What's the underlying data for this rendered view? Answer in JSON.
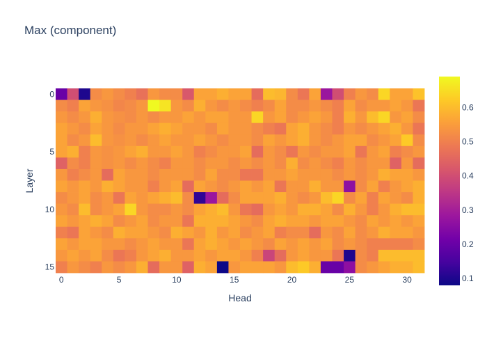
{
  "chart_data": {
    "type": "heatmap",
    "title": "Max (component)",
    "xlabel": "Head",
    "ylabel": "Layer",
    "x_ticks": [
      "0",
      "5",
      "10",
      "15",
      "20",
      "25",
      "30"
    ],
    "y_ticks": [
      "0",
      "5",
      "10",
      "15"
    ],
    "colorbar_ticks": [
      "0.1",
      "0.2",
      "0.3",
      "0.4",
      "0.5",
      "0.6"
    ],
    "zmin": 0.08,
    "zmax": 0.69,
    "colorscale": "plasma",
    "n_cols": 32,
    "n_rows": 16,
    "z": [
      [
        0.2,
        0.4,
        0.1,
        0.52,
        0.54,
        0.52,
        0.5,
        0.47,
        0.54,
        0.52,
        0.52,
        0.42,
        0.56,
        0.56,
        0.58,
        0.56,
        0.56,
        0.46,
        0.6,
        0.59,
        0.52,
        0.48,
        0.56,
        0.28,
        0.4,
        0.5,
        0.54,
        0.52,
        0.64,
        0.56,
        0.56,
        0.61
      ],
      [
        0.52,
        0.5,
        0.56,
        0.54,
        0.53,
        0.51,
        0.52,
        0.54,
        0.69,
        0.66,
        0.54,
        0.52,
        0.58,
        0.54,
        0.52,
        0.54,
        0.52,
        0.5,
        0.52,
        0.56,
        0.52,
        0.52,
        0.54,
        0.52,
        0.5,
        0.56,
        0.52,
        0.54,
        0.54,
        0.56,
        0.54,
        0.48
      ],
      [
        0.54,
        0.52,
        0.54,
        0.58,
        0.54,
        0.53,
        0.52,
        0.54,
        0.52,
        0.54,
        0.54,
        0.56,
        0.54,
        0.56,
        0.56,
        0.54,
        0.54,
        0.64,
        0.54,
        0.56,
        0.52,
        0.54,
        0.56,
        0.54,
        0.5,
        0.58,
        0.54,
        0.6,
        0.64,
        0.54,
        0.56,
        0.52
      ],
      [
        0.56,
        0.54,
        0.52,
        0.56,
        0.54,
        0.52,
        0.54,
        0.54,
        0.56,
        0.58,
        0.56,
        0.54,
        0.54,
        0.52,
        0.56,
        0.54,
        0.54,
        0.52,
        0.5,
        0.48,
        0.56,
        0.58,
        0.54,
        0.52,
        0.5,
        0.54,
        0.52,
        0.54,
        0.56,
        0.58,
        0.54,
        0.48
      ],
      [
        0.56,
        0.52,
        0.54,
        0.6,
        0.54,
        0.53,
        0.54,
        0.52,
        0.54,
        0.56,
        0.54,
        0.54,
        0.56,
        0.54,
        0.52,
        0.54,
        0.54,
        0.52,
        0.56,
        0.54,
        0.56,
        0.58,
        0.54,
        0.52,
        0.54,
        0.56,
        0.56,
        0.52,
        0.54,
        0.56,
        0.62,
        0.52
      ],
      [
        0.56,
        0.58,
        0.5,
        0.54,
        0.53,
        0.54,
        0.56,
        0.58,
        0.54,
        0.54,
        0.56,
        0.54,
        0.5,
        0.52,
        0.54,
        0.54,
        0.56,
        0.46,
        0.54,
        0.52,
        0.48,
        0.54,
        0.52,
        0.54,
        0.54,
        0.56,
        0.48,
        0.54,
        0.56,
        0.5,
        0.52,
        0.54
      ],
      [
        0.44,
        0.52,
        0.5,
        0.54,
        0.53,
        0.54,
        0.52,
        0.54,
        0.52,
        0.5,
        0.54,
        0.54,
        0.52,
        0.54,
        0.54,
        0.52,
        0.54,
        0.52,
        0.54,
        0.52,
        0.58,
        0.52,
        0.54,
        0.52,
        0.5,
        0.54,
        0.52,
        0.54,
        0.54,
        0.44,
        0.54,
        0.46
      ],
      [
        0.54,
        0.5,
        0.52,
        0.54,
        0.46,
        0.56,
        0.54,
        0.54,
        0.52,
        0.54,
        0.54,
        0.54,
        0.52,
        0.56,
        0.52,
        0.52,
        0.48,
        0.48,
        0.54,
        0.54,
        0.56,
        0.54,
        0.54,
        0.54,
        0.52,
        0.54,
        0.52,
        0.54,
        0.58,
        0.56,
        0.56,
        0.54
      ],
      [
        0.56,
        0.54,
        0.56,
        0.54,
        0.58,
        0.56,
        0.54,
        0.54,
        0.5,
        0.54,
        0.56,
        0.46,
        0.56,
        0.54,
        0.52,
        0.54,
        0.56,
        0.54,
        0.56,
        0.48,
        0.54,
        0.54,
        0.58,
        0.54,
        0.54,
        0.26,
        0.52,
        0.56,
        0.5,
        0.54,
        0.56,
        0.58
      ],
      [
        0.52,
        0.54,
        0.56,
        0.52,
        0.54,
        0.48,
        0.56,
        0.54,
        0.56,
        0.58,
        0.6,
        0.52,
        0.12,
        0.28,
        0.46,
        0.52,
        0.56,
        0.56,
        0.56,
        0.58,
        0.54,
        0.52,
        0.54,
        0.6,
        0.64,
        0.52,
        0.56,
        0.5,
        0.56,
        0.54,
        0.52,
        0.58
      ],
      [
        0.54,
        0.52,
        0.6,
        0.52,
        0.54,
        0.56,
        0.64,
        0.54,
        0.52,
        0.52,
        0.54,
        0.52,
        0.56,
        0.58,
        0.6,
        0.54,
        0.48,
        0.46,
        0.54,
        0.56,
        0.54,
        0.58,
        0.58,
        0.56,
        0.52,
        0.58,
        0.54,
        0.5,
        0.54,
        0.58,
        0.6,
        0.6
      ],
      [
        0.56,
        0.54,
        0.56,
        0.58,
        0.56,
        0.52,
        0.54,
        0.56,
        0.52,
        0.54,
        0.54,
        0.48,
        0.58,
        0.58,
        0.58,
        0.56,
        0.54,
        0.52,
        0.56,
        0.58,
        0.56,
        0.56,
        0.54,
        0.56,
        0.56,
        0.54,
        0.52,
        0.56,
        0.54,
        0.56,
        0.54,
        0.56
      ],
      [
        0.5,
        0.48,
        0.56,
        0.54,
        0.52,
        0.58,
        0.56,
        0.56,
        0.54,
        0.52,
        0.58,
        0.56,
        0.54,
        0.58,
        0.54,
        0.56,
        0.52,
        0.54,
        0.56,
        0.5,
        0.52,
        0.52,
        0.46,
        0.54,
        0.52,
        0.56,
        0.52,
        0.54,
        0.58,
        0.56,
        0.56,
        0.54
      ],
      [
        0.56,
        0.54,
        0.56,
        0.56,
        0.54,
        0.54,
        0.52,
        0.54,
        0.56,
        0.54,
        0.54,
        0.48,
        0.56,
        0.58,
        0.56,
        0.54,
        0.56,
        0.54,
        0.52,
        0.56,
        0.54,
        0.56,
        0.54,
        0.56,
        0.52,
        0.54,
        0.52,
        0.5,
        0.5,
        0.5,
        0.5,
        0.52
      ],
      [
        0.54,
        0.56,
        0.54,
        0.56,
        0.52,
        0.48,
        0.5,
        0.54,
        0.56,
        0.58,
        0.54,
        0.54,
        0.56,
        0.54,
        0.56,
        0.56,
        0.54,
        0.5,
        0.38,
        0.46,
        0.54,
        0.56,
        0.54,
        0.54,
        0.48,
        0.1,
        0.52,
        0.5,
        0.6,
        0.6,
        0.6,
        0.6
      ],
      [
        0.5,
        0.54,
        0.52,
        0.5,
        0.54,
        0.52,
        0.54,
        0.58,
        0.46,
        0.54,
        0.54,
        0.44,
        0.58,
        0.56,
        0.08,
        0.54,
        0.56,
        0.56,
        0.56,
        0.54,
        0.6,
        0.62,
        0.58,
        0.2,
        0.2,
        0.26,
        0.52,
        0.54,
        0.56,
        0.58,
        0.58,
        0.6
      ]
    ]
  }
}
